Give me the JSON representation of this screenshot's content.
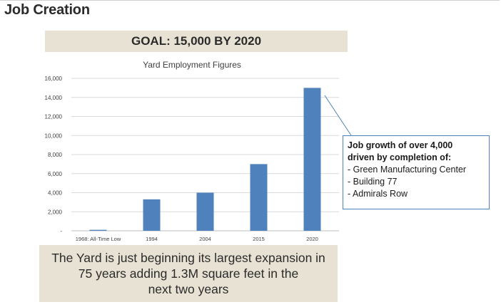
{
  "page": {
    "title": "Job Creation",
    "goal_banner": "GOAL: 15,000 BY 2020",
    "bottom_text_lines": [
      "The Yard is just beginning its largest expansion in",
      "75 years adding 1.3M square feet in the",
      "next two years"
    ]
  },
  "callout": {
    "heading_lines": [
      "Job growth of over 4,000",
      "driven by completion of:"
    ],
    "items": [
      "- Green Manufacturing Center",
      "- Building 77",
      "- Admirals Row"
    ]
  },
  "chart_data": {
    "type": "bar",
    "title": "Yard Employment Figures",
    "categories": [
      "1968: All-Time Low",
      "1994",
      "2004",
      "2015",
      "2020"
    ],
    "values": [
      100,
      3300,
      4000,
      7000,
      15000
    ],
    "y_ticks": [
      "-",
      "2,000",
      "4,000",
      "6,000",
      "8,000",
      "10,000",
      "12,000",
      "14,000",
      "16,000"
    ],
    "ylim": [
      0,
      16000
    ],
    "grid": true,
    "bar_color": "#4f81bd"
  },
  "colors": {
    "banner_bg": "#e7e2d3",
    "accent": "#4f81bd"
  }
}
